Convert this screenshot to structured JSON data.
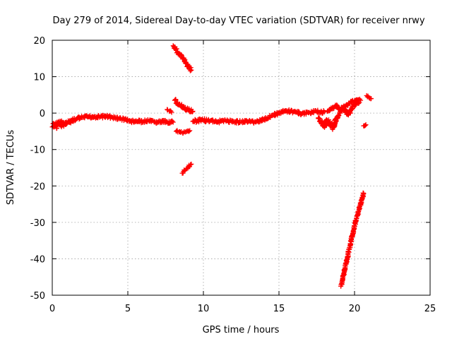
{
  "chart_data": {
    "type": "scatter",
    "title": "Day 279 of 2014, Sidereal Day-to-day VTEC variation (SDTVAR) for receiver nrwy",
    "xlabel": "GPS time / hours",
    "ylabel": "SDTVAR / TECUs",
    "xlim": [
      0,
      25
    ],
    "ylim": [
      -50,
      20
    ],
    "xticks": [
      0,
      5,
      10,
      15,
      20,
      25
    ],
    "yticks": [
      -50,
      -40,
      -30,
      -20,
      -10,
      0,
      10,
      20
    ],
    "grid": true,
    "series_color": "#ff0000",
    "series": [
      {
        "name": "main",
        "x": [
          0.0,
          0.2,
          0.5,
          0.8,
          1.0,
          1.3,
          1.6,
          2.0,
          2.4,
          2.8,
          3.2,
          3.6,
          4.0,
          4.4,
          4.8,
          5.2,
          5.6,
          6.0,
          6.4,
          6.8,
          7.2,
          7.6,
          8.0
        ],
        "y": [
          -3.8,
          -3.4,
          -3.0,
          -2.9,
          -2.7,
          -2.2,
          -1.6,
          -1.2,
          -1.0,
          -1.0,
          -1.0,
          -0.9,
          -1.2,
          -1.5,
          -1.7,
          -2.3,
          -2.3,
          -2.3,
          -2.2,
          -2.5,
          -2.4,
          -2.4,
          -2.5
        ],
        "thickness": [
          2.0,
          2.0,
          2.0,
          1.5,
          1.0,
          1.0,
          1.0,
          0.8,
          0.8,
          0.8,
          0.8,
          0.8,
          0.8,
          0.8,
          0.8,
          0.8,
          0.8,
          0.8,
          0.8,
          0.8,
          0.8,
          0.8,
          0.8
        ]
      },
      {
        "name": "main-2",
        "x": [
          9.3,
          9.6,
          10.0,
          10.5,
          11.0,
          11.5,
          12.0,
          12.5,
          13.0,
          13.5,
          14.0,
          14.5,
          15.0,
          15.5,
          16.0,
          16.5,
          17.0,
          17.5,
          18.0
        ],
        "y": [
          -2.3,
          -2.2,
          -2.0,
          -2.0,
          -2.3,
          -2.2,
          -2.3,
          -2.4,
          -2.3,
          -2.4,
          -1.8,
          -0.7,
          0.0,
          0.6,
          0.4,
          -0.2,
          0.2,
          0.4,
          0.3
        ],
        "thickness": [
          1.0,
          1.0,
          1.0,
          0.8,
          0.8,
          0.8,
          0.8,
          0.8,
          0.8,
          0.8,
          0.8,
          0.8,
          0.8,
          0.8,
          0.8,
          0.8,
          0.8,
          0.8,
          0.8
        ]
      },
      {
        "name": "tail-spread",
        "x": [
          17.6,
          17.8,
          18.0,
          18.2,
          18.4,
          18.6,
          18.8,
          19.0,
          19.2,
          19.4,
          19.6,
          19.8,
          20.0,
          20.2,
          20.4
        ],
        "y": [
          -1.5,
          -2.5,
          -3.5,
          -2.0,
          -2.8,
          -4.0,
          -1.5,
          0.0,
          1.5,
          0.5,
          -0.5,
          1.0,
          2.5,
          3.0,
          3.5
        ],
        "thickness": [
          1.0,
          1.2,
          1.5,
          1.5,
          1.5,
          1.5,
          1.2,
          1.0,
          1.0,
          1.0,
          1.0,
          1.0,
          1.0,
          1.0,
          1.0
        ]
      },
      {
        "name": "tail-upper",
        "x": [
          18.2,
          18.5,
          18.8,
          19.1,
          19.4,
          19.7,
          20.0,
          20.3
        ],
        "y": [
          0.5,
          1.2,
          2.0,
          1.0,
          2.0,
          2.8,
          3.4,
          3.6
        ],
        "thickness": [
          0.8,
          0.8,
          0.8,
          0.8,
          0.8,
          0.8,
          0.8,
          0.8
        ]
      },
      {
        "name": "segment-a",
        "x": [
          8.0,
          8.3,
          8.6,
          8.9,
          9.2
        ],
        "y": [
          18.5,
          16.8,
          15.2,
          13.5,
          11.8
        ],
        "thickness": [
          1.0,
          1.0,
          1.0,
          1.0,
          1.0
        ]
      },
      {
        "name": "segment-b",
        "x": [
          8.1,
          8.4,
          8.7,
          9.0,
          9.3
        ],
        "y": [
          3.5,
          2.5,
          1.5,
          0.8,
          0.5
        ],
        "thickness": [
          1.0,
          1.0,
          1.0,
          1.0,
          1.0
        ]
      },
      {
        "name": "segment-c",
        "x": [
          7.6,
          7.9
        ],
        "y": [
          1.0,
          0.2
        ],
        "thickness": [
          0.5,
          0.5
        ]
      },
      {
        "name": "segment-d",
        "x": [
          8.2,
          8.5,
          8.8,
          9.1
        ],
        "y": [
          -5.0,
          -5.3,
          -5.2,
          -4.8
        ],
        "thickness": [
          0.6,
          0.6,
          0.6,
          0.6
        ]
      },
      {
        "name": "segment-e",
        "x": [
          8.6,
          8.9,
          9.2
        ],
        "y": [
          -16.5,
          -15.2,
          -14.0
        ],
        "thickness": [
          0.6,
          0.6,
          0.6
        ]
      },
      {
        "name": "segment-f",
        "x": [
          19.1,
          19.4,
          19.7,
          20.0,
          20.3,
          20.6
        ],
        "y": [
          -47.5,
          -42.0,
          -36.5,
          -31.0,
          -26.5,
          -22.0
        ],
        "thickness": [
          0.8,
          0.8,
          0.8,
          0.8,
          0.8,
          0.8
        ]
      },
      {
        "name": "segment-g",
        "x": [
          20.8,
          20.95,
          21.1
        ],
        "y": [
          4.8,
          4.3,
          4.0
        ],
        "thickness": [
          0.6,
          0.6,
          0.6
        ]
      },
      {
        "name": "segment-h",
        "x": [
          20.6,
          20.75
        ],
        "y": [
          -3.5,
          -3.2
        ],
        "thickness": [
          0.3,
          0.3
        ]
      }
    ]
  }
}
